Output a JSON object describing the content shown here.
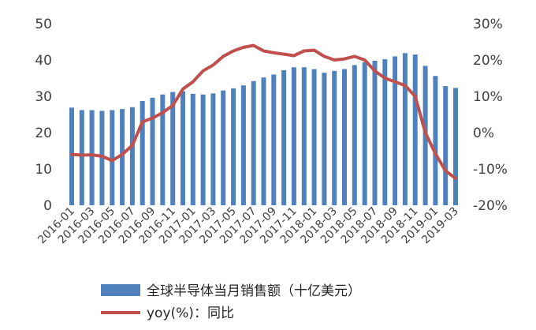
{
  "chart_data": {
    "type": "bar+line",
    "categories": [
      "2016-01",
      "2016-02",
      "2016-03",
      "2016-04",
      "2016-05",
      "2016-06",
      "2016-07",
      "2016-08",
      "2016-09",
      "2016-10",
      "2016-11",
      "2016-12",
      "2017-01",
      "2017-02",
      "2017-03",
      "2017-04",
      "2017-05",
      "2017-06",
      "2017-07",
      "2017-08",
      "2017-09",
      "2017-10",
      "2017-11",
      "2017-12",
      "2018-01",
      "2018-02",
      "2018-03",
      "2018-04",
      "2018-05",
      "2018-06",
      "2018-07",
      "2018-08",
      "2018-09",
      "2018-10",
      "2018-11",
      "2018-12",
      "2019-01",
      "2019-02",
      "2019-03"
    ],
    "x_tick_labels": [
      "2016-01",
      "2016-03",
      "2016-05",
      "2016-07",
      "2016-09",
      "2016-11",
      "2017-01",
      "2017-03",
      "2017-05",
      "2017-07",
      "2017-09",
      "2017-11",
      "2018-01",
      "2018-03",
      "2018-05",
      "2018-07",
      "2018-09",
      "2018-11",
      "2019-01",
      "2019-03"
    ],
    "series": [
      {
        "name": "全球半导体当月销售额（十亿美元）",
        "type": "bar",
        "axis": "left",
        "color": "#4F81BD",
        "values": [
          26.9,
          26.2,
          26.2,
          26.0,
          26.2,
          26.5,
          27.0,
          28.7,
          29.6,
          30.5,
          31.2,
          31.4,
          30.7,
          30.5,
          30.8,
          31.6,
          32.2,
          33.0,
          34.2,
          35.2,
          36.0,
          37.2,
          38.0,
          38.0,
          37.5,
          36.5,
          37.0,
          37.5,
          38.6,
          39.4,
          39.8,
          40.2,
          41.0,
          41.9,
          41.5,
          38.4,
          35.6,
          32.8,
          32.3
        ]
      },
      {
        "name": "yoy(%)：同比",
        "type": "line",
        "axis": "right",
        "color": "#C0504D",
        "values": [
          -6.0,
          -6.2,
          -6.1,
          -6.5,
          -7.7,
          -6.0,
          -3.5,
          3.0,
          4.0,
          5.5,
          7.5,
          12.0,
          14.0,
          17.0,
          18.6,
          21.0,
          22.5,
          23.5,
          24.0,
          22.5,
          22.0,
          21.6,
          21.2,
          22.5,
          22.7,
          21.0,
          20.0,
          20.3,
          21.0,
          20.0,
          17.0,
          15.0,
          14.0,
          13.0,
          10.0,
          0.0,
          -5.8,
          -10.5,
          -12.6
        ]
      }
    ],
    "yleft": {
      "min": 0,
      "max": 50,
      "ticks": [
        0,
        10,
        20,
        30,
        40,
        50
      ]
    },
    "yright": {
      "min": -20,
      "max": 30,
      "ticks": [
        -20,
        -10,
        0,
        10,
        20,
        30
      ],
      "tick_labels": [
        "-20%",
        "-10%",
        "0%",
        "10%",
        "20%",
        "30%"
      ]
    },
    "grid": false,
    "legend_position": "bottom"
  }
}
